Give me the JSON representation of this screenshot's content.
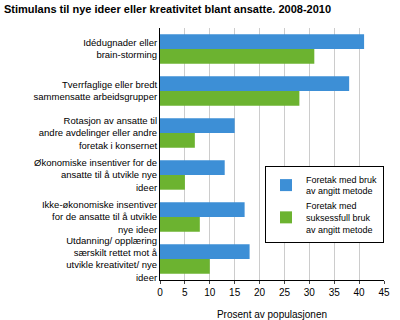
{
  "chart_data": {
    "type": "bar",
    "orientation": "horizontal",
    "title": "Stimulans til nye ideer eller kreativitet blant ansatte. 2008-2010",
    "x_label": "Prosent av populasjonen",
    "categories": [
      "Idédugnader eller brain-storming",
      "Tverrfaglige eller bredt sammensatte arbeidsgrupper",
      "Rotasjon av ansatte til andre avdelinger eller andre foretak i konsernet",
      "Økonomiske insentiver for de ansatte til å utvikle nye ideer",
      "Ikke-økonomiske insentiver for de ansatte til å utvikle nye ideer",
      "Utdanning/ opplæring særskilt rettet mot å utvikle kreativitet/ nye ideer"
    ],
    "series": [
      {
        "name": "Foretak med bruk av angitt metode",
        "color": "#3d8fd6",
        "values": [
          41,
          38,
          15,
          13,
          17,
          18
        ]
      },
      {
        "name": "Foretak med suksessfull bruk av angitt metode",
        "color": "#6cb330",
        "values": [
          31,
          28,
          7,
          5,
          8,
          10
        ]
      }
    ],
    "xlim": [
      0,
      45
    ],
    "xticks": [
      0,
      5,
      10,
      15,
      20,
      25,
      30,
      35,
      40,
      45
    ],
    "grid": true,
    "legend": "right"
  }
}
